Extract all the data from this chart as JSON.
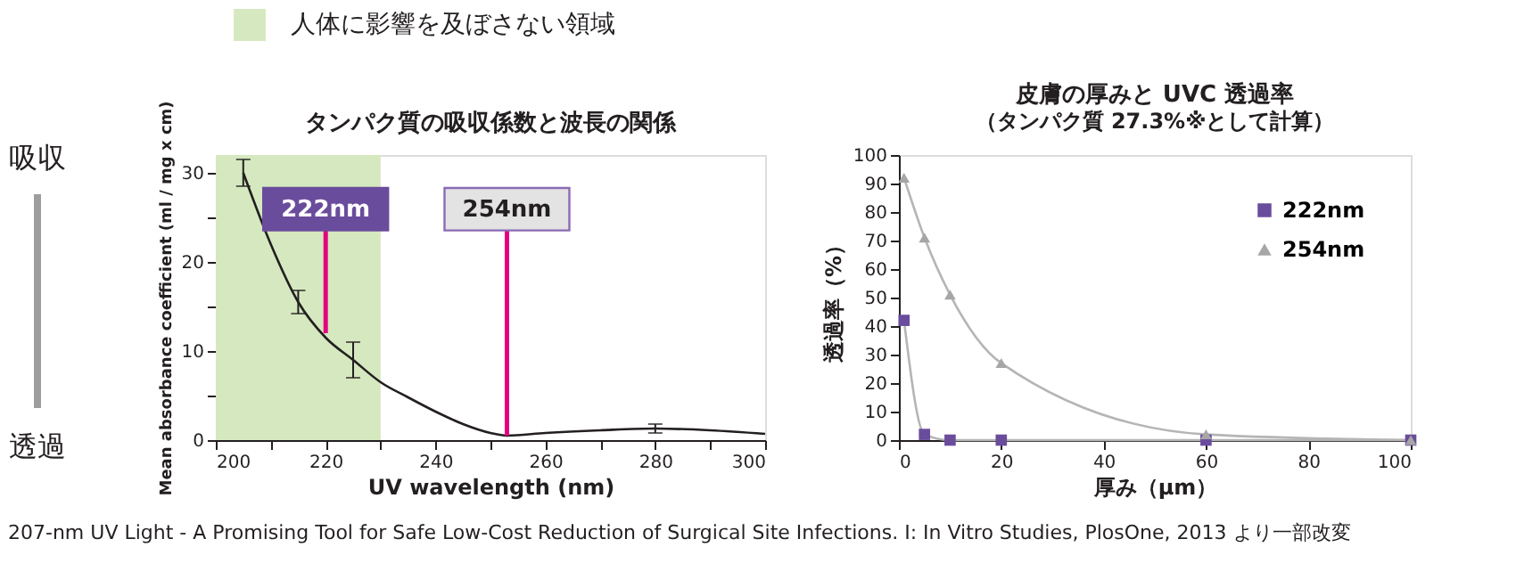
{
  "chart_data": [
    {
      "type": "line",
      "title": "タンパク質の吸収係数と波長の関係",
      "xlabel": "UV wavelength (nm)",
      "ylabel": "Mean absorbance coefficient (ml / mg x cm)",
      "x": [
        205,
        210,
        215,
        220,
        225,
        230,
        235,
        240,
        245,
        250,
        253,
        260,
        270,
        280,
        290,
        300
      ],
      "series": [
        {
          "color": "#231f20",
          "values": [
            30,
            22,
            15.5,
            11.5,
            9,
            6.5,
            4.8,
            3.2,
            1.8,
            0.8,
            0.5,
            0.8,
            1.1,
            1.3,
            1.1,
            0.7
          ],
          "errors": [
            1.5,
            null,
            1.3,
            null,
            2,
            null,
            null,
            null,
            null,
            null,
            null,
            null,
            null,
            0.5,
            null,
            null
          ]
        }
      ],
      "marker": "none",
      "line_style": "solid",
      "xlim": [
        200,
        300
      ],
      "xticks": [
        200,
        {
          "value": 210,
          "label": null
        },
        220,
        {
          "value": 230,
          "label": null
        },
        240,
        {
          "value": 250,
          "label": null
        },
        260,
        {
          "value": 270,
          "label": null
        },
        280,
        {
          "value": 290,
          "label": null
        },
        300
      ],
      "ylim": [
        0,
        32
      ],
      "yticks": [
        0,
        {
          "value": 5,
          "label": null
        },
        10,
        {
          "value": 15,
          "label": null
        },
        20,
        {
          "value": 25,
          "label": null
        },
        30
      ],
      "bands": [
        {
          "axis": "x",
          "from": 200,
          "to": 230,
          "label": "人体に影響を及ぼさない領域",
          "color": "#d5e8bf"
        }
      ],
      "annotations": [
        {
          "text": "222nm",
          "x": 220,
          "y": 12
        },
        {
          "text": "254nm",
          "x": 253,
          "y": 0.5
        },
        "吸収",
        "透過",
        "207-nm UV Light - A Promising Tool for Safe Low-Cost Reduction of Surgical Site Infections. I: In Vitro Studies, PlosOne, 2013 より一部改変"
      ]
    },
    {
      "type": "scatter",
      "title": "皮膚の厚みと UVC 透過率",
      "subtitle": "（タンパク質 27.3%※として計算）",
      "xlabel": "厚み（μm）",
      "ylabel": "透過率（%）",
      "x": [
        1,
        5,
        10,
        20,
        60,
        100
      ],
      "series": [
        {
          "name": "222nm",
          "color": "#6a4c9c",
          "marker": "square",
          "values": [
            42,
            2,
            0,
            0,
            0,
            0
          ]
        },
        {
          "name": "254nm",
          "color": "#a6a6a6",
          "marker": "triangle",
          "values": [
            92,
            71,
            51,
            27,
            2,
            0
          ]
        },
        {
          "type": "line",
          "color": "#b5b5b5",
          "values": [
            42,
            2,
            0,
            0,
            0,
            0
          ]
        },
        {
          "type": "line",
          "color": "#b5b5b5",
          "values": [
            92,
            71,
            51,
            27,
            2,
            0
          ]
        }
      ],
      "legend": "top right",
      "xlim": [
        0,
        100
      ],
      "xticks": [
        0,
        20,
        40,
        60,
        80,
        100
      ],
      "ylim": [
        0,
        100
      ],
      "yticks": [
        0,
        10,
        20,
        30,
        40,
        50,
        60,
        70,
        80,
        90,
        100
      ]
    }
  ]
}
